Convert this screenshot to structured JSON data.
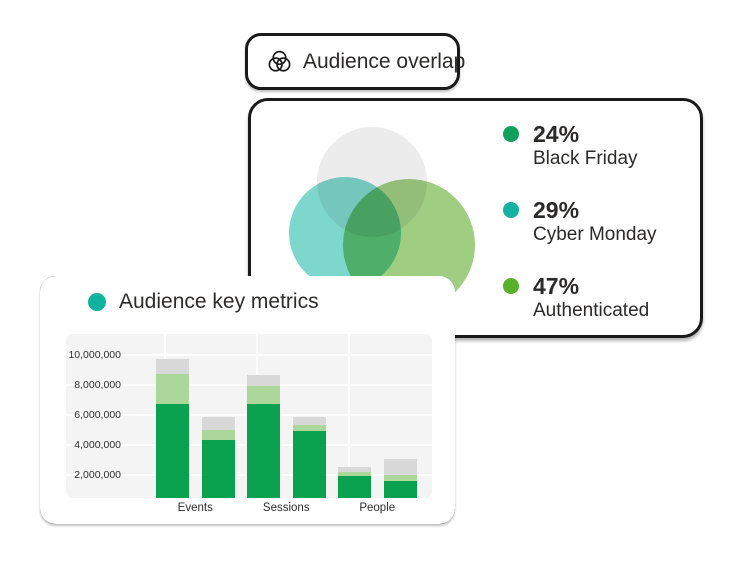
{
  "badge": {
    "label": "Audience overlap",
    "icon": "venn-diagram-icon"
  },
  "venn_card": {
    "circles": [
      {
        "name": "gray-circle",
        "color": "#ECECEC"
      },
      {
        "name": "teal-circle",
        "color": "#7ED7CC"
      },
      {
        "name": "green-circle",
        "color": "#9FCE83"
      }
    ],
    "legend": [
      {
        "pct": "24%",
        "label": "Black Friday",
        "dot_color": "#0FA05A"
      },
      {
        "pct": "29%",
        "label": "Cyber Monday",
        "dot_color": "#15B1A2"
      },
      {
        "pct": "47%",
        "label": "Authenticated",
        "dot_color": "#58B02B"
      }
    ]
  },
  "metrics_card": {
    "title": "Audience key metrics",
    "title_dot_color": "#12B2A0"
  },
  "chart_data": {
    "type": "bar",
    "stacked": true,
    "title": "Audience key metrics",
    "categories": [
      "Events",
      "Sessions",
      "People"
    ],
    "bars_per_category": 2,
    "series": [
      {
        "name": "dark-green",
        "color": "#0BA24F",
        "values": [
          6700000,
          4300000,
          6700000,
          4950000,
          1900000,
          1600000
        ]
      },
      {
        "name": "light-green",
        "color": "#ABD79B",
        "values": [
          2000000,
          700000,
          1250000,
          400000,
          300000,
          400000
        ]
      },
      {
        "name": "gray",
        "color": "#D8D8D8",
        "values": [
          1050000,
          850000,
          700000,
          500000,
          350000,
          1050000
        ]
      }
    ],
    "yticks": [
      {
        "value": 2000000,
        "label": "2,000,000"
      },
      {
        "value": 4000000,
        "label": "4,000,000"
      },
      {
        "value": 6000000,
        "label": "6,000,000"
      },
      {
        "value": 8000000,
        "label": "8,000,000"
      },
      {
        "value": 10000000,
        "label": "10,000,000"
      }
    ],
    "ylim": [
      450000,
      11400000
    ],
    "xlabel": "",
    "ylabel": "",
    "grid": true,
    "grid_color": "#FFFFFF",
    "plot_bg": "#F4F4F4",
    "legend_position": "none"
  }
}
